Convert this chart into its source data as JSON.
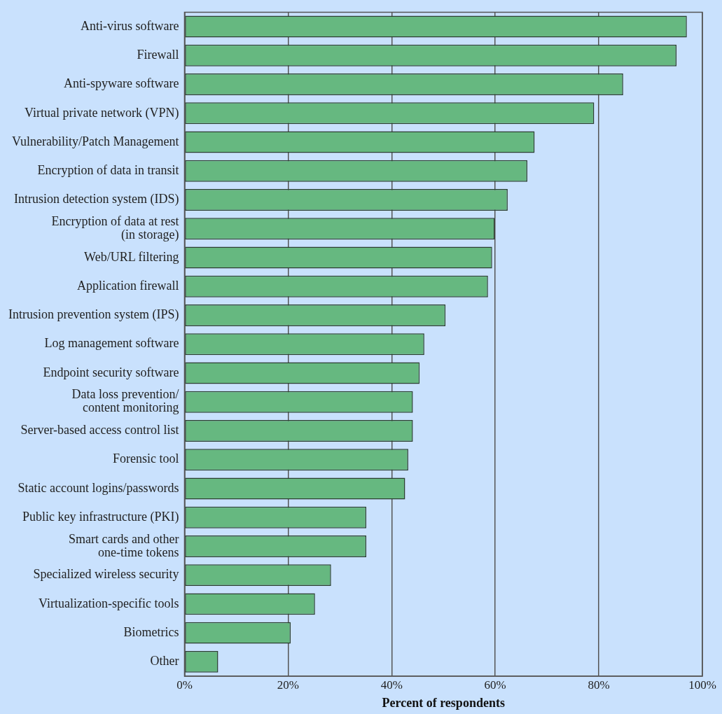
{
  "chart_data": {
    "type": "bar",
    "orientation": "horizontal",
    "xlabel": "Percent of respondents",
    "categories": [
      "Anti-virus software",
      "Firewall",
      "Anti-spyware software",
      "Virtual private network (VPN)",
      "Vulnerability/Patch Management",
      "Encryption of data in transit",
      "Intrusion detection system (IDS)",
      "Encryption of data at rest\n(in storage)",
      "Web/URL filtering",
      "Application firewall",
      "Intrusion prevention system (IPS)",
      "Log management software",
      "Endpoint security software",
      "Data loss prevention/\ncontent monitoring",
      "Server-based access control list",
      "Forensic tool",
      "Static account logins/passwords",
      "Public key infrastructure (PKI)",
      "Smart cards and other\none-time tokens",
      "Specialized wireless security",
      "Virtualization-specific tools",
      "Biometrics",
      "Other"
    ],
    "values": [
      97,
      95,
      84.7,
      79.1,
      67.6,
      66.2,
      62.4,
      59.9,
      59.4,
      58.6,
      50.4,
      46.3,
      45.4,
      44.1,
      44.1,
      43.2,
      42.6,
      35.1,
      35.1,
      28.3,
      25.2,
      20.5,
      6.5
    ],
    "color": "#66b880",
    "xlim": [
      0,
      100
    ],
    "xticks": [
      {
        "value": 0,
        "label": "0%"
      },
      {
        "value": 20,
        "label": "20%"
      },
      {
        "value": 40,
        "label": "40%"
      },
      {
        "value": 60,
        "label": "60%"
      },
      {
        "value": 80,
        "label": "80%"
      },
      {
        "value": 100,
        "label": "100%"
      }
    ],
    "grid": "x"
  }
}
